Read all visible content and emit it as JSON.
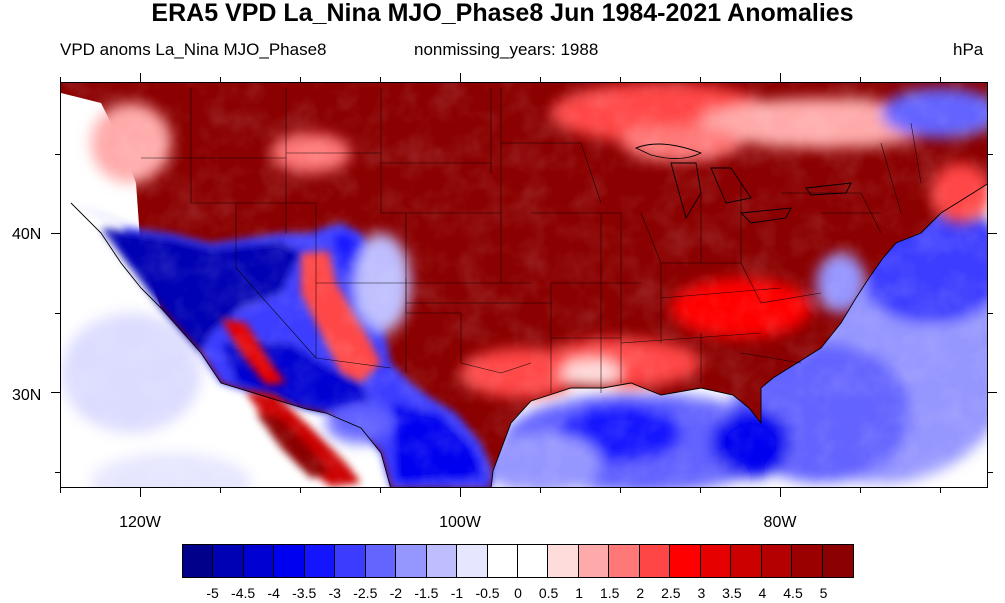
{
  "title": "ERA5 VPD La_Nina MJO_Phase8 Jun 1984-2021 Anomalies",
  "subtitle_left": "VPD anoms La_Nina MJO_Phase8",
  "subtitle_center": "nonmissing_years: 1988",
  "units": "hPa",
  "map": {
    "region": "Contiguous United States",
    "projection": "cylindrical equidistant",
    "lon_range": [
      -125,
      -67
    ],
    "lat_range": [
      24,
      49.5
    ],
    "lat_labels": [
      "40N",
      "30N"
    ],
    "lon_labels": [
      "120W",
      "100W",
      "80W"
    ],
    "positive_anomaly_color": "#8b0000",
    "negative_anomaly_color": "#00008b"
  },
  "colorbar": {
    "labels": [
      "-5",
      "-4.5",
      "-4",
      "-3.5",
      "-3",
      "-2.5",
      "-2",
      "-1.5",
      "-1",
      "-0.5",
      "0",
      "0.5",
      "1",
      "1.5",
      "2",
      "2.5",
      "3",
      "3.5",
      "4",
      "4.5",
      "5"
    ],
    "colors": [
      "#00008b",
      "#0000b4",
      "#0000d2",
      "#0000f0",
      "#1414ff",
      "#3c3cff",
      "#6464ff",
      "#9696ff",
      "#bebeff",
      "#e6e6ff",
      "#ffffff",
      "#ffffff",
      "#ffdcdc",
      "#ffaaaa",
      "#ff7878",
      "#ff4646",
      "#ff0000",
      "#e60000",
      "#cd0000",
      "#b40000",
      "#9b0000",
      "#8b0000"
    ]
  }
}
